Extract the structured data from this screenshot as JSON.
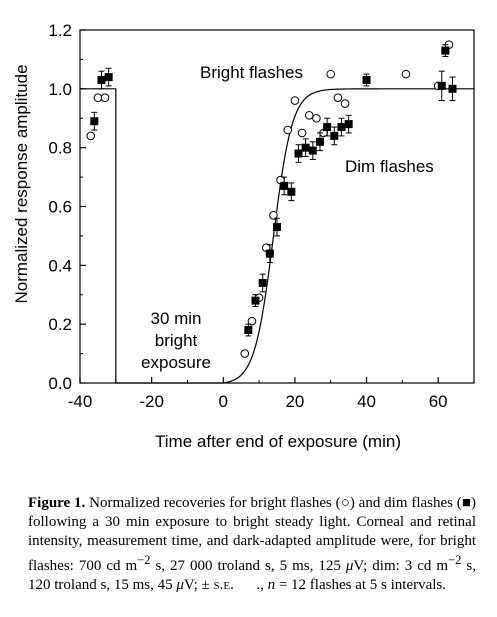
{
  "chart_data": {
    "type": "scatter",
    "title": "",
    "xlabel": "Time after end of exposure (min)",
    "ylabel": "Normalized response amplitude",
    "xlim": [
      -40,
      70
    ],
    "ylim": [
      0.0,
      1.2
    ],
    "x_ticks": [
      -40,
      -20,
      0,
      20,
      40,
      60
    ],
    "y_ticks": [
      0.0,
      0.2,
      0.4,
      0.6,
      0.8,
      1.0,
      1.2
    ],
    "y_tick_labels": [
      "0.0",
      "0.2",
      "0.4",
      "0.6",
      "0.8",
      "1.0",
      "1.2"
    ],
    "grid": false,
    "series": [
      {
        "name": "Bright flashes",
        "marker": "open-circle",
        "points": [
          {
            "x": -37,
            "y": 0.84
          },
          {
            "x": -35,
            "y": 0.97
          },
          {
            "x": -33,
            "y": 0.97
          },
          {
            "x": 6,
            "y": 0.1
          },
          {
            "x": 8,
            "y": 0.21
          },
          {
            "x": 10,
            "y": 0.29
          },
          {
            "x": 12,
            "y": 0.46
          },
          {
            "x": 14,
            "y": 0.57
          },
          {
            "x": 16,
            "y": 0.69
          },
          {
            "x": 18,
            "y": 0.86
          },
          {
            "x": 20,
            "y": 0.96
          },
          {
            "x": 22,
            "y": 0.85
          },
          {
            "x": 24,
            "y": 0.91
          },
          {
            "x": 26,
            "y": 0.9
          },
          {
            "x": 28,
            "y": 0.85
          },
          {
            "x": 30,
            "y": 1.05
          },
          {
            "x": 32,
            "y": 0.97
          },
          {
            "x": 34,
            "y": 0.95
          },
          {
            "x": 51,
            "y": 1.05
          },
          {
            "x": 60,
            "y": 1.01
          },
          {
            "x": 63,
            "y": 1.15
          }
        ]
      },
      {
        "name": "Dim flashes",
        "marker": "filled-square",
        "points": [
          {
            "x": -36,
            "y": 0.89,
            "err": 0.03
          },
          {
            "x": -34,
            "y": 1.03,
            "err": 0.03
          },
          {
            "x": -32,
            "y": 1.04,
            "err": 0.03
          },
          {
            "x": 7,
            "y": 0.18,
            "err": 0.02
          },
          {
            "x": 9,
            "y": 0.28,
            "err": 0.02
          },
          {
            "x": 11,
            "y": 0.34,
            "err": 0.03
          },
          {
            "x": 13,
            "y": 0.44,
            "err": 0.03
          },
          {
            "x": 15,
            "y": 0.53,
            "err": 0.03
          },
          {
            "x": 17,
            "y": 0.67,
            "err": 0.03
          },
          {
            "x": 19,
            "y": 0.65,
            "err": 0.03
          },
          {
            "x": 21,
            "y": 0.78,
            "err": 0.03
          },
          {
            "x": 23,
            "y": 0.8,
            "err": 0.03
          },
          {
            "x": 25,
            "y": 0.79,
            "err": 0.03
          },
          {
            "x": 27,
            "y": 0.82,
            "err": 0.03
          },
          {
            "x": 29,
            "y": 0.87,
            "err": 0.03
          },
          {
            "x": 31,
            "y": 0.84,
            "err": 0.03
          },
          {
            "x": 33,
            "y": 0.87,
            "err": 0.03
          },
          {
            "x": 35,
            "y": 0.88,
            "err": 0.03
          },
          {
            "x": 40,
            "y": 1.03,
            "err": 0.02
          },
          {
            "x": 61,
            "y": 1.01,
            "err": 0.05
          },
          {
            "x": 62,
            "y": 1.13,
            "err": 0.02
          },
          {
            "x": 64,
            "y": 1.0,
            "err": 0.04
          }
        ]
      }
    ],
    "exposure_trace": [
      {
        "x": -40,
        "y": 1.0
      },
      {
        "x": -30,
        "y": 1.0
      },
      {
        "x": -30,
        "y": 0.0
      },
      {
        "x": 0,
        "y": 0.0
      }
    ],
    "recovery_curve": {
      "onset": 0,
      "midpoint": 14,
      "slope": 0.38,
      "x_end": 70
    },
    "annotations": {
      "bright_label": "Bright flashes",
      "dim_label": "Dim flashes",
      "exposure_line1": "30 min",
      "exposure_line2": "bright",
      "exposure_line3": "exposure"
    }
  },
  "caption": {
    "fig": "Figure 1.",
    "t1": " Normalized recoveries for bright flashes (",
    "sym_bright": "○",
    "t2": ") and dim flashes (",
    "sym_dim": "■",
    "t3": ") following a 30 min exposure to bright steady light. Corneal and retinal intensity, measurement time, and dark-adapted amplitude were, for bright flashes: 700 cd m",
    "sup1": "−2",
    "t4": " s, 27 000 troland s, 5 ms, 125 ",
    "mu1": "μ",
    "t5": "V; dim: 3 cd m",
    "sup2": "−2",
    "t6": " s, 120 troland s, 15 ms, 45 ",
    "mu2": "μ",
    "t7": "V; ± ",
    "se": "s.e.",
    "t8": "      ., ",
    "n": "n",
    "t9": " = 12 flashes at 5 s intervals."
  }
}
